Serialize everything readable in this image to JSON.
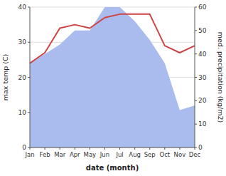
{
  "chart_data": {
    "type": "line",
    "xlabel": "date (month)",
    "ylabel": "max temp (C)",
    "y2label": "med. precipitation (kg/m2)",
    "categories": [
      "Jan",
      "Feb",
      "Mar",
      "Apr",
      "May",
      "Jun",
      "Jul",
      "Aug",
      "Sep",
      "Oct",
      "Nov",
      "Dec"
    ],
    "series": [
      {
        "type": "area",
        "axis": "y2",
        "color": "#aabbee",
        "values": [
          36,
          40,
          44,
          50,
          50,
          60,
          60,
          54,
          46,
          36,
          16,
          18
        ]
      },
      {
        "type": "line",
        "color": "#cc4444",
        "values": [
          24,
          27,
          34,
          35,
          34,
          37,
          38,
          38,
          38,
          29,
          27,
          29
        ]
      }
    ],
    "ylim": [
      0,
      40
    ],
    "yticks": [
      0,
      10,
      20,
      30,
      40
    ],
    "y2lim": [
      0,
      60
    ],
    "y2ticks": [
      0,
      10,
      20,
      30,
      40,
      50,
      60
    ],
    "grid": true
  }
}
